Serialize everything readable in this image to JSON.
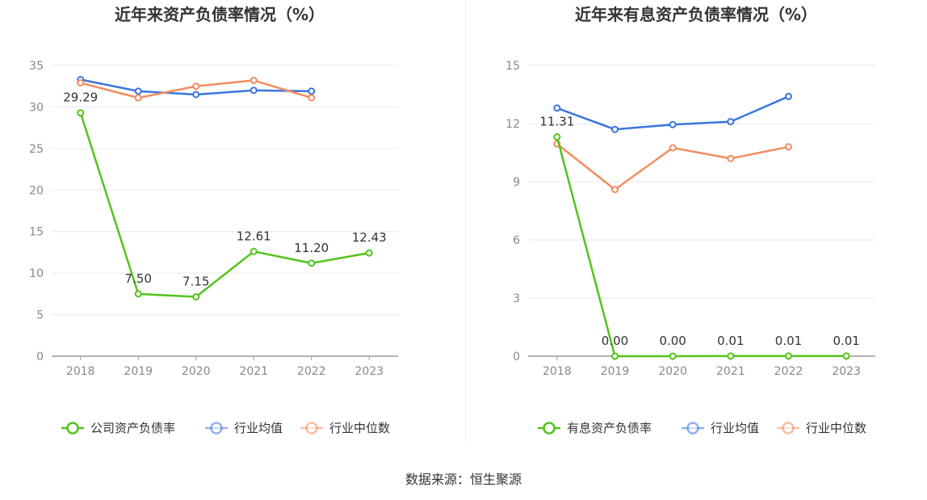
{
  "colors": {
    "company": "#52c41a",
    "average": "#3a75dd",
    "median": "#f28c5e",
    "grid": "#e6e9f2",
    "axis": "#999999"
  },
  "source": "数据来源：恒生聚源",
  "chart_data": [
    {
      "type": "line",
      "title": "近年来资产负债率情况（%）",
      "x": [
        "2018",
        "2019",
        "2020",
        "2021",
        "2022",
        "2023"
      ],
      "ylim": [
        0,
        35
      ],
      "yticks": [
        "0",
        "5",
        "10",
        "15",
        "20",
        "25",
        "30",
        "35"
      ],
      "ytick_values": [
        0,
        5,
        10,
        15,
        20,
        25,
        30,
        35
      ],
      "grid": true,
      "legend_position": "bottom",
      "series": [
        {
          "name": "公司资产负债率",
          "color": "#52c41a",
          "values": [
            29.29,
            7.5,
            7.15,
            12.61,
            11.2,
            12.43
          ],
          "labels": [
            "29.29",
            "7.50",
            "7.15",
            "12.61",
            "11.20",
            "12.43"
          ]
        },
        {
          "name": "行业均值",
          "color": "#3a75dd",
          "values": [
            33.3,
            31.9,
            31.5,
            32.0,
            31.9,
            null
          ]
        },
        {
          "name": "行业中位数",
          "color": "#f28c5e",
          "values": [
            32.9,
            31.1,
            32.5,
            33.2,
            31.1,
            null
          ]
        }
      ]
    },
    {
      "type": "line",
      "title": "近年来有息资产负债率情况（%）",
      "x": [
        "2018",
        "2019",
        "2020",
        "2021",
        "2022",
        "2023"
      ],
      "ylim": [
        0,
        15
      ],
      "yticks": [
        "0",
        "3",
        "6",
        "9",
        "12",
        "15"
      ],
      "ytick_values": [
        0,
        3,
        6,
        9,
        12,
        15
      ],
      "grid": true,
      "legend_position": "bottom",
      "series": [
        {
          "name": "有息资产负债率",
          "color": "#52c41a",
          "values": [
            11.31,
            0.0,
            0.0,
            0.01,
            0.01,
            0.01
          ],
          "labels": [
            "11.31",
            "0.00",
            "0.00",
            "0.01",
            "0.01",
            "0.01"
          ]
        },
        {
          "name": "行业均值",
          "color": "#3a75dd",
          "values": [
            12.8,
            11.7,
            11.95,
            12.1,
            13.4,
            null
          ]
        },
        {
          "name": "行业中位数",
          "color": "#f28c5e",
          "values": [
            10.95,
            8.6,
            10.75,
            10.2,
            10.8,
            null
          ]
        }
      ]
    }
  ]
}
